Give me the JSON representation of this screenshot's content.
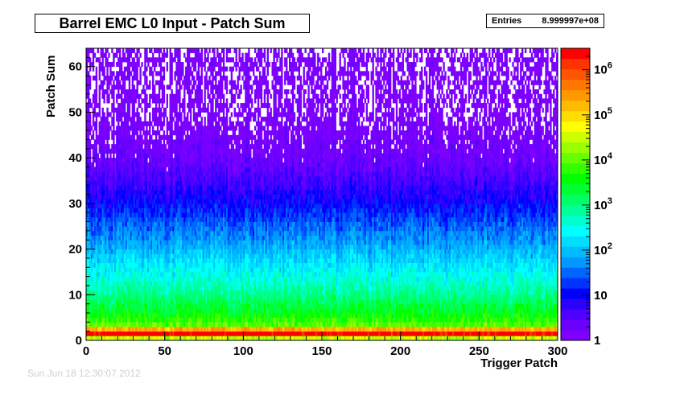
{
  "title": "Barrel EMC L0 Input - Patch Sum",
  "stats": {
    "label": "Entries",
    "value": "8.999997e+08"
  },
  "footer_stamp": "Sun Jun 18 12:30:07 2012",
  "chart_data": {
    "type": "heatmap",
    "title": "Barrel EMC L0 Input - Patch Sum",
    "xlabel": "Trigger Patch",
    "ylabel": "Patch Sum",
    "xlim": [
      0,
      300
    ],
    "ylim": [
      0,
      64
    ],
    "x_ticks": [
      "0",
      "50",
      "100",
      "150",
      "200",
      "250",
      "300"
    ],
    "y_ticks": [
      "0",
      "10",
      "20",
      "30",
      "40",
      "50",
      "60"
    ],
    "z_scale": "log",
    "zlim": [
      1,
      3000000
    ],
    "z_tick_labels": [
      {
        "base": "1",
        "exp": "",
        "value": 1
      },
      {
        "base": "10",
        "exp": "",
        "value": 10
      },
      {
        "base": "10",
        "exp": "2",
        "value": 100
      },
      {
        "base": "10",
        "exp": "3",
        "value": 1000
      },
      {
        "base": "10",
        "exp": "4",
        "value": 10000
      },
      {
        "base": "10",
        "exp": "5",
        "value": 100000
      },
      {
        "base": "10",
        "exp": "6",
        "value": 1000000
      }
    ],
    "palette": [
      "#7f00ff",
      "#6a00ff",
      "#4f00ff",
      "#2a00ff",
      "#0000ff",
      "#0033ff",
      "#0066ff",
      "#0099ff",
      "#00bbff",
      "#00ddff",
      "#00ffff",
      "#00ffcc",
      "#00ff99",
      "#00ff66",
      "#00ff33",
      "#00ff00",
      "#33ff00",
      "#66ff00",
      "#99ff00",
      "#ccff00",
      "#ffff00",
      "#ffdd00",
      "#ffbb00",
      "#ff9900",
      "#ff7700",
      "#ff5500",
      "#ff3300",
      "#ff0000"
    ],
    "entries": "8.999997e+08",
    "summary": {
      "typical_counts_by_patch_sum": [
        {
          "y": 0,
          "count": 30000
        },
        {
          "y": 1,
          "count": 3000000
        },
        {
          "y": 2,
          "count": 200000
        },
        {
          "y": 3,
          "count": 10000
        },
        {
          "y": 5,
          "count": 4000
        },
        {
          "y": 8,
          "count": 1500
        },
        {
          "y": 12,
          "count": 500
        },
        {
          "y": 16,
          "count": 200
        },
        {
          "y": 20,
          "count": 80
        },
        {
          "y": 25,
          "count": 30
        },
        {
          "y": 30,
          "count": 10
        },
        {
          "y": 35,
          "count": 4
        },
        {
          "y": 40,
          "count": 2
        },
        {
          "y": 50,
          "count": 1
        },
        {
          "y": 62,
          "count": 1
        }
      ]
    }
  }
}
